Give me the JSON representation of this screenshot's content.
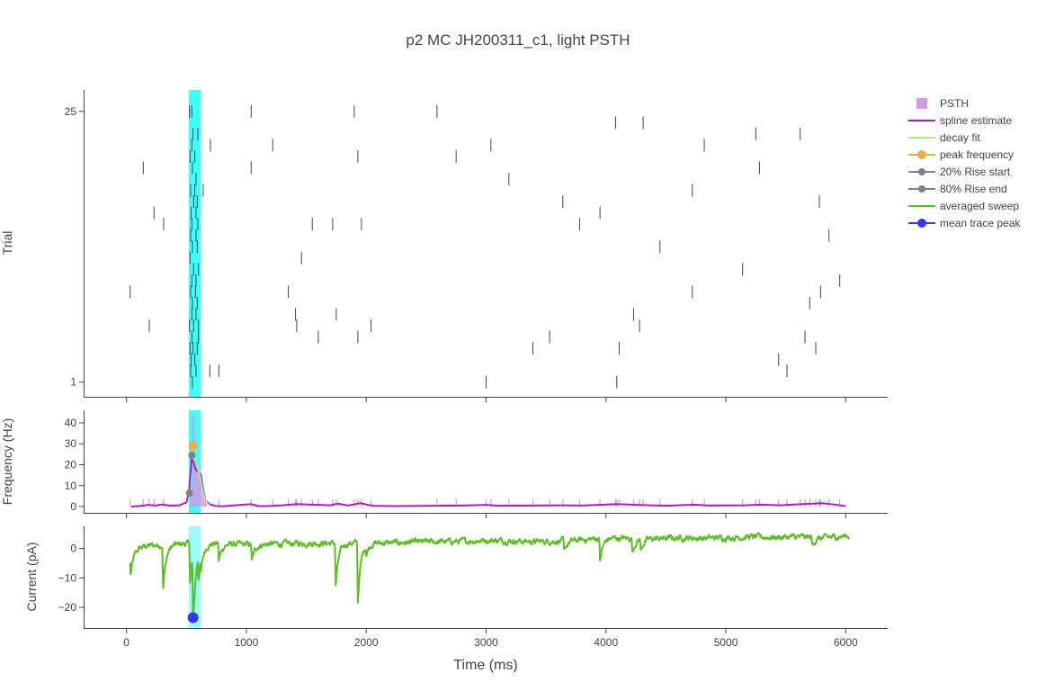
{
  "chart_data": {
    "type": "line",
    "title": "p2 MC JH200311_c1, light PSTH",
    "xlabel": "Time (ms)",
    "xlim": [
      -350,
      6350
    ],
    "x_ticks": [
      0,
      1000,
      2000,
      3000,
      4000,
      5000,
      6000
    ],
    "x_tick_labels": [
      "0",
      "1000",
      "2000",
      "3000",
      "4000",
      "5000",
      "6000"
    ],
    "stimulus": {
      "start": 520,
      "end": 620,
      "color": "#00ffff"
    },
    "legend_position": "top-right",
    "legend": [
      {
        "label": "PSTH",
        "kind": "square",
        "color": "#d797e6"
      },
      {
        "label": "spline estimate",
        "kind": "line",
        "color": "#b019c8"
      },
      {
        "label": "decay fit",
        "kind": "line",
        "color": "#a7f07a"
      },
      {
        "label": "peak frequency",
        "kind": "line-marker",
        "color": "#f9ab3c"
      },
      {
        "label": "20% Rise start",
        "kind": "line-marker",
        "color": "#808080"
      },
      {
        "label": "80% Rise end",
        "kind": "line-marker",
        "color": "#808080"
      },
      {
        "label": "averaged sweep",
        "kind": "line",
        "color": "#5cbf22"
      },
      {
        "label": "mean trace peak",
        "kind": "line-marker",
        "color": "#3333ff"
      }
    ],
    "raster": {
      "ylabel": "Trial",
      "ylim": [
        -0.3,
        26.9
      ],
      "y_ticks": [
        1,
        25
      ],
      "y_tick_labels": [
        "1",
        "25"
      ],
      "spike_color": "#444444",
      "trials": [
        {
          "trial": 1,
          "spikes": [
            550,
            3000,
            4090
          ]
        },
        {
          "trial": 2,
          "spikes": [
            535,
            580,
            695,
            770,
            5510
          ]
        },
        {
          "trial": 3,
          "spikes": [
            540,
            570,
            5440
          ]
        },
        {
          "trial": 4,
          "spikes": [
            530,
            555,
            590,
            3390,
            4110,
            5750
          ]
        },
        {
          "trial": 5,
          "spikes": [
            545,
            600,
            1600,
            1930,
            3530,
            5660
          ]
        },
        {
          "trial": 6,
          "spikes": [
            190,
            525,
            560,
            600,
            1420,
            2040,
            4280
          ]
        },
        {
          "trial": 7,
          "spikes": [
            545,
            580,
            1410,
            1750,
            4230
          ]
        },
        {
          "trial": 8,
          "spikes": [
            550,
            590,
            5700
          ]
        },
        {
          "trial": 9,
          "spikes": [
            30,
            535,
            575,
            1350,
            4720,
            5790
          ]
        },
        {
          "trial": 10,
          "spikes": [
            545,
            580,
            5950
          ]
        },
        {
          "trial": 11,
          "spikes": [
            560,
            600,
            5140
          ]
        },
        {
          "trial": 12,
          "spikes": [
            530,
            1460
          ]
        },
        {
          "trial": 13,
          "spikes": [
            550,
            590,
            4450
          ]
        },
        {
          "trial": 14,
          "spikes": [
            535,
            580,
            5860
          ]
        },
        {
          "trial": 15,
          "spikes": [
            310,
            545,
            595,
            1550,
            1720,
            1960,
            3780
          ]
        },
        {
          "trial": 16,
          "spikes": [
            230,
            540,
            580,
            3950
          ]
        },
        {
          "trial": 17,
          "spikes": [
            560,
            590,
            3640,
            5780
          ]
        },
        {
          "trial": 18,
          "spikes": [
            535,
            570,
            640,
            4720
          ]
        },
        {
          "trial": 19,
          "spikes": [
            580,
            3190
          ]
        },
        {
          "trial": 20,
          "spikes": [
            140,
            550,
            1040,
            5280
          ]
        },
        {
          "trial": 21,
          "spikes": [
            530,
            570,
            1930,
            2750
          ]
        },
        {
          "trial": 22,
          "spikes": [
            545,
            700,
            1220,
            3040,
            4820
          ]
        },
        {
          "trial": 23,
          "spikes": [
            555,
            595,
            5250,
            5620
          ]
        },
        {
          "trial": 24,
          "spikes": [
            4080,
            4310
          ]
        },
        {
          "trial": 25,
          "spikes": [
            525,
            545,
            1040,
            1900,
            2590
          ]
        }
      ]
    },
    "psth": {
      "ylabel": "Frequency (Hz)",
      "ylim": [
        -3,
        46
      ],
      "y_ticks": [
        0,
        10,
        20,
        30,
        40
      ],
      "y_tick_labels": [
        "0",
        "10",
        "20",
        "30",
        "40"
      ],
      "bins": [
        {
          "x": 540,
          "value": 10
        },
        {
          "x": 560,
          "value": 44
        },
        {
          "x": 580,
          "value": 20
        },
        {
          "x": 600,
          "value": 17
        },
        {
          "x": 620,
          "value": 16
        },
        {
          "x": 640,
          "value": 8
        },
        {
          "x": 660,
          "value": 3
        }
      ],
      "small_bin_value": 3.5,
      "spline": [
        [
          40,
          0
        ],
        [
          120,
          0.3
        ],
        [
          180,
          0.8
        ],
        [
          240,
          0.5
        ],
        [
          300,
          1.0
        ],
        [
          360,
          0.4
        ],
        [
          440,
          0.6
        ],
        [
          500,
          2.0
        ],
        [
          520,
          6.5
        ],
        [
          545,
          24
        ],
        [
          560,
          21
        ],
        [
          575,
          18
        ],
        [
          590,
          17
        ],
        [
          605,
          16.5
        ],
        [
          620,
          15
        ],
        [
          640,
          8
        ],
        [
          660,
          3
        ],
        [
          690,
          1.2
        ],
        [
          740,
          0.3
        ],
        [
          800,
          0.1
        ],
        [
          1040,
          1.2
        ],
        [
          1100,
          0.2
        ],
        [
          1200,
          0.3
        ],
        [
          1300,
          0.6
        ],
        [
          1420,
          1.2
        ],
        [
          1550,
          0.9
        ],
        [
          1700,
          0.6
        ],
        [
          1760,
          1.4
        ],
        [
          1850,
          0.5
        ],
        [
          1950,
          1.6
        ],
        [
          2050,
          0.4
        ],
        [
          2200,
          0.2
        ],
        [
          2600,
          0.4
        ],
        [
          2800,
          0.5
        ],
        [
          3000,
          0.8
        ],
        [
          3100,
          0.4
        ],
        [
          3400,
          0.5
        ],
        [
          3650,
          0.6
        ],
        [
          3800,
          0.5
        ],
        [
          4100,
          1.2
        ],
        [
          4250,
          0.8
        ],
        [
          4500,
          0.4
        ],
        [
          4750,
          0.9
        ],
        [
          4850,
          0.5
        ],
        [
          5150,
          0.6
        ],
        [
          5300,
          0.9
        ],
        [
          5450,
          0.6
        ],
        [
          5650,
          1.2
        ],
        [
          5800,
          1.6
        ],
        [
          5900,
          1.0
        ],
        [
          6000,
          0.2
        ]
      ],
      "decay_fit": [
        [
          548,
          24
        ],
        [
          570,
          22
        ],
        [
          590,
          19.5
        ],
        [
          610,
          15
        ],
        [
          630,
          9
        ],
        [
          650,
          4.5
        ],
        [
          670,
          1.8
        ],
        [
          690,
          0.6
        ]
      ],
      "peak_frequency": {
        "x": 555,
        "y": 29
      },
      "rise_start": {
        "x": 525,
        "y": 6.5
      },
      "rise_end": {
        "x": 545,
        "y": 24.5
      }
    },
    "trace": {
      "ylabel": "Current (pA)",
      "ylim": [
        -27,
        7.5
      ],
      "y_ticks": [
        -20,
        -10,
        0
      ],
      "y_tick_labels": [
        "−20",
        "−10",
        "0"
      ],
      "mean_trace_peak": {
        "x": 555,
        "y": -23.5
      },
      "baseline": [
        [
          30,
          -4
        ],
        [
          60,
          -1
        ],
        [
          100,
          0.2
        ],
        [
          150,
          0.7
        ],
        [
          200,
          1.0
        ],
        [
          300,
          1.1
        ],
        [
          400,
          1.4
        ],
        [
          500,
          1.6
        ],
        [
          600,
          1.9
        ],
        [
          800,
          1.6
        ],
        [
          1000,
          1.3
        ],
        [
          1200,
          1.5
        ],
        [
          1400,
          1.7
        ],
        [
          1600,
          1.8
        ],
        [
          1800,
          1.8
        ],
        [
          2000,
          2.0
        ],
        [
          2200,
          1.9
        ],
        [
          2400,
          2.1
        ],
        [
          2600,
          2.3
        ],
        [
          2800,
          2.4
        ],
        [
          3000,
          2.8
        ],
        [
          3200,
          2.6
        ],
        [
          3400,
          2.3
        ],
        [
          3600,
          2.5
        ],
        [
          3800,
          2.9
        ],
        [
          4000,
          3.6
        ],
        [
          4200,
          3.4
        ],
        [
          4400,
          3.3
        ],
        [
          4600,
          3.6
        ],
        [
          4800,
          3.5
        ],
        [
          5000,
          3.7
        ],
        [
          5200,
          3.9
        ],
        [
          5400,
          3.8
        ],
        [
          5600,
          3.9
        ],
        [
          5800,
          3.6
        ],
        [
          6000,
          4.2
        ]
      ],
      "events": [
        {
          "x": 35,
          "depth": -6
        },
        {
          "x": 305,
          "depth": -15
        },
        {
          "x": 530,
          "depth": -13
        },
        {
          "x": 555,
          "depth": -25
        },
        {
          "x": 600,
          "depth": -8
        },
        {
          "x": 620,
          "depth": -5
        },
        {
          "x": 770,
          "depth": -6
        },
        {
          "x": 1045,
          "depth": -6
        },
        {
          "x": 1745,
          "depth": -15
        },
        {
          "x": 1930,
          "depth": -20
        },
        {
          "x": 2000,
          "depth": -3
        },
        {
          "x": 3650,
          "depth": -4
        },
        {
          "x": 3950,
          "depth": -8
        },
        {
          "x": 4220,
          "depth": -5
        },
        {
          "x": 4290,
          "depth": -4
        },
        {
          "x": 5720,
          "depth": -3
        }
      ]
    }
  }
}
